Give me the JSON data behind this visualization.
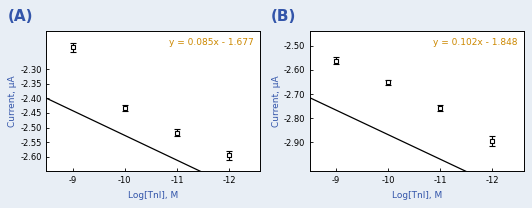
{
  "panel_A": {
    "label": "(A)",
    "x": [
      -9,
      -10,
      -11,
      -12
    ],
    "y": [
      -2.225,
      -2.432,
      -2.518,
      -2.595
    ],
    "yerr": [
      0.015,
      0.01,
      0.012,
      0.015
    ],
    "slope": 0.085,
    "intercept": -1.677,
    "equation": "y = 0.085x - 1.677",
    "xlabel": "Log[TnI], M",
    "ylabel": "Current, μA",
    "xlim": [
      -8.5,
      -12.6
    ],
    "ylim": [
      -2.65,
      -2.17
    ],
    "yticks": [
      -2.6,
      -2.55,
      -2.5,
      -2.45,
      -2.4,
      -2.35,
      -2.3
    ],
    "xticks": [
      -9,
      -10,
      -11,
      -12
    ]
  },
  "panel_B": {
    "label": "(B)",
    "x": [
      -9,
      -10,
      -11,
      -12
    ],
    "y": [
      -2.562,
      -2.652,
      -2.758,
      -2.895
    ],
    "yerr": [
      0.015,
      0.012,
      0.013,
      0.022
    ],
    "slope": 0.102,
    "intercept": -1.848,
    "equation": "y = 0.102x - 1.848",
    "xlabel": "Log[TnI], M",
    "ylabel": "Current, μA",
    "xlim": [
      -8.5,
      -12.6
    ],
    "ylim": [
      -3.02,
      -2.44
    ],
    "yticks": [
      -2.9,
      -2.8,
      -2.7,
      -2.6,
      -2.5
    ],
    "xticks": [
      -9,
      -10,
      -11,
      -12
    ]
  },
  "line_color": "#000000",
  "marker_color": "#000000",
  "eq_color": "#CC8800",
  "label_color": "#3355AA",
  "bg_color": "#FFFFFF",
  "fig_bg_color": "#E8EEF5",
  "panel_label_color": "#3355AA",
  "eq_fontsize": 6.5,
  "axis_label_fontsize": 6.5,
  "tick_fontsize": 6,
  "panel_label_fontsize": 11
}
